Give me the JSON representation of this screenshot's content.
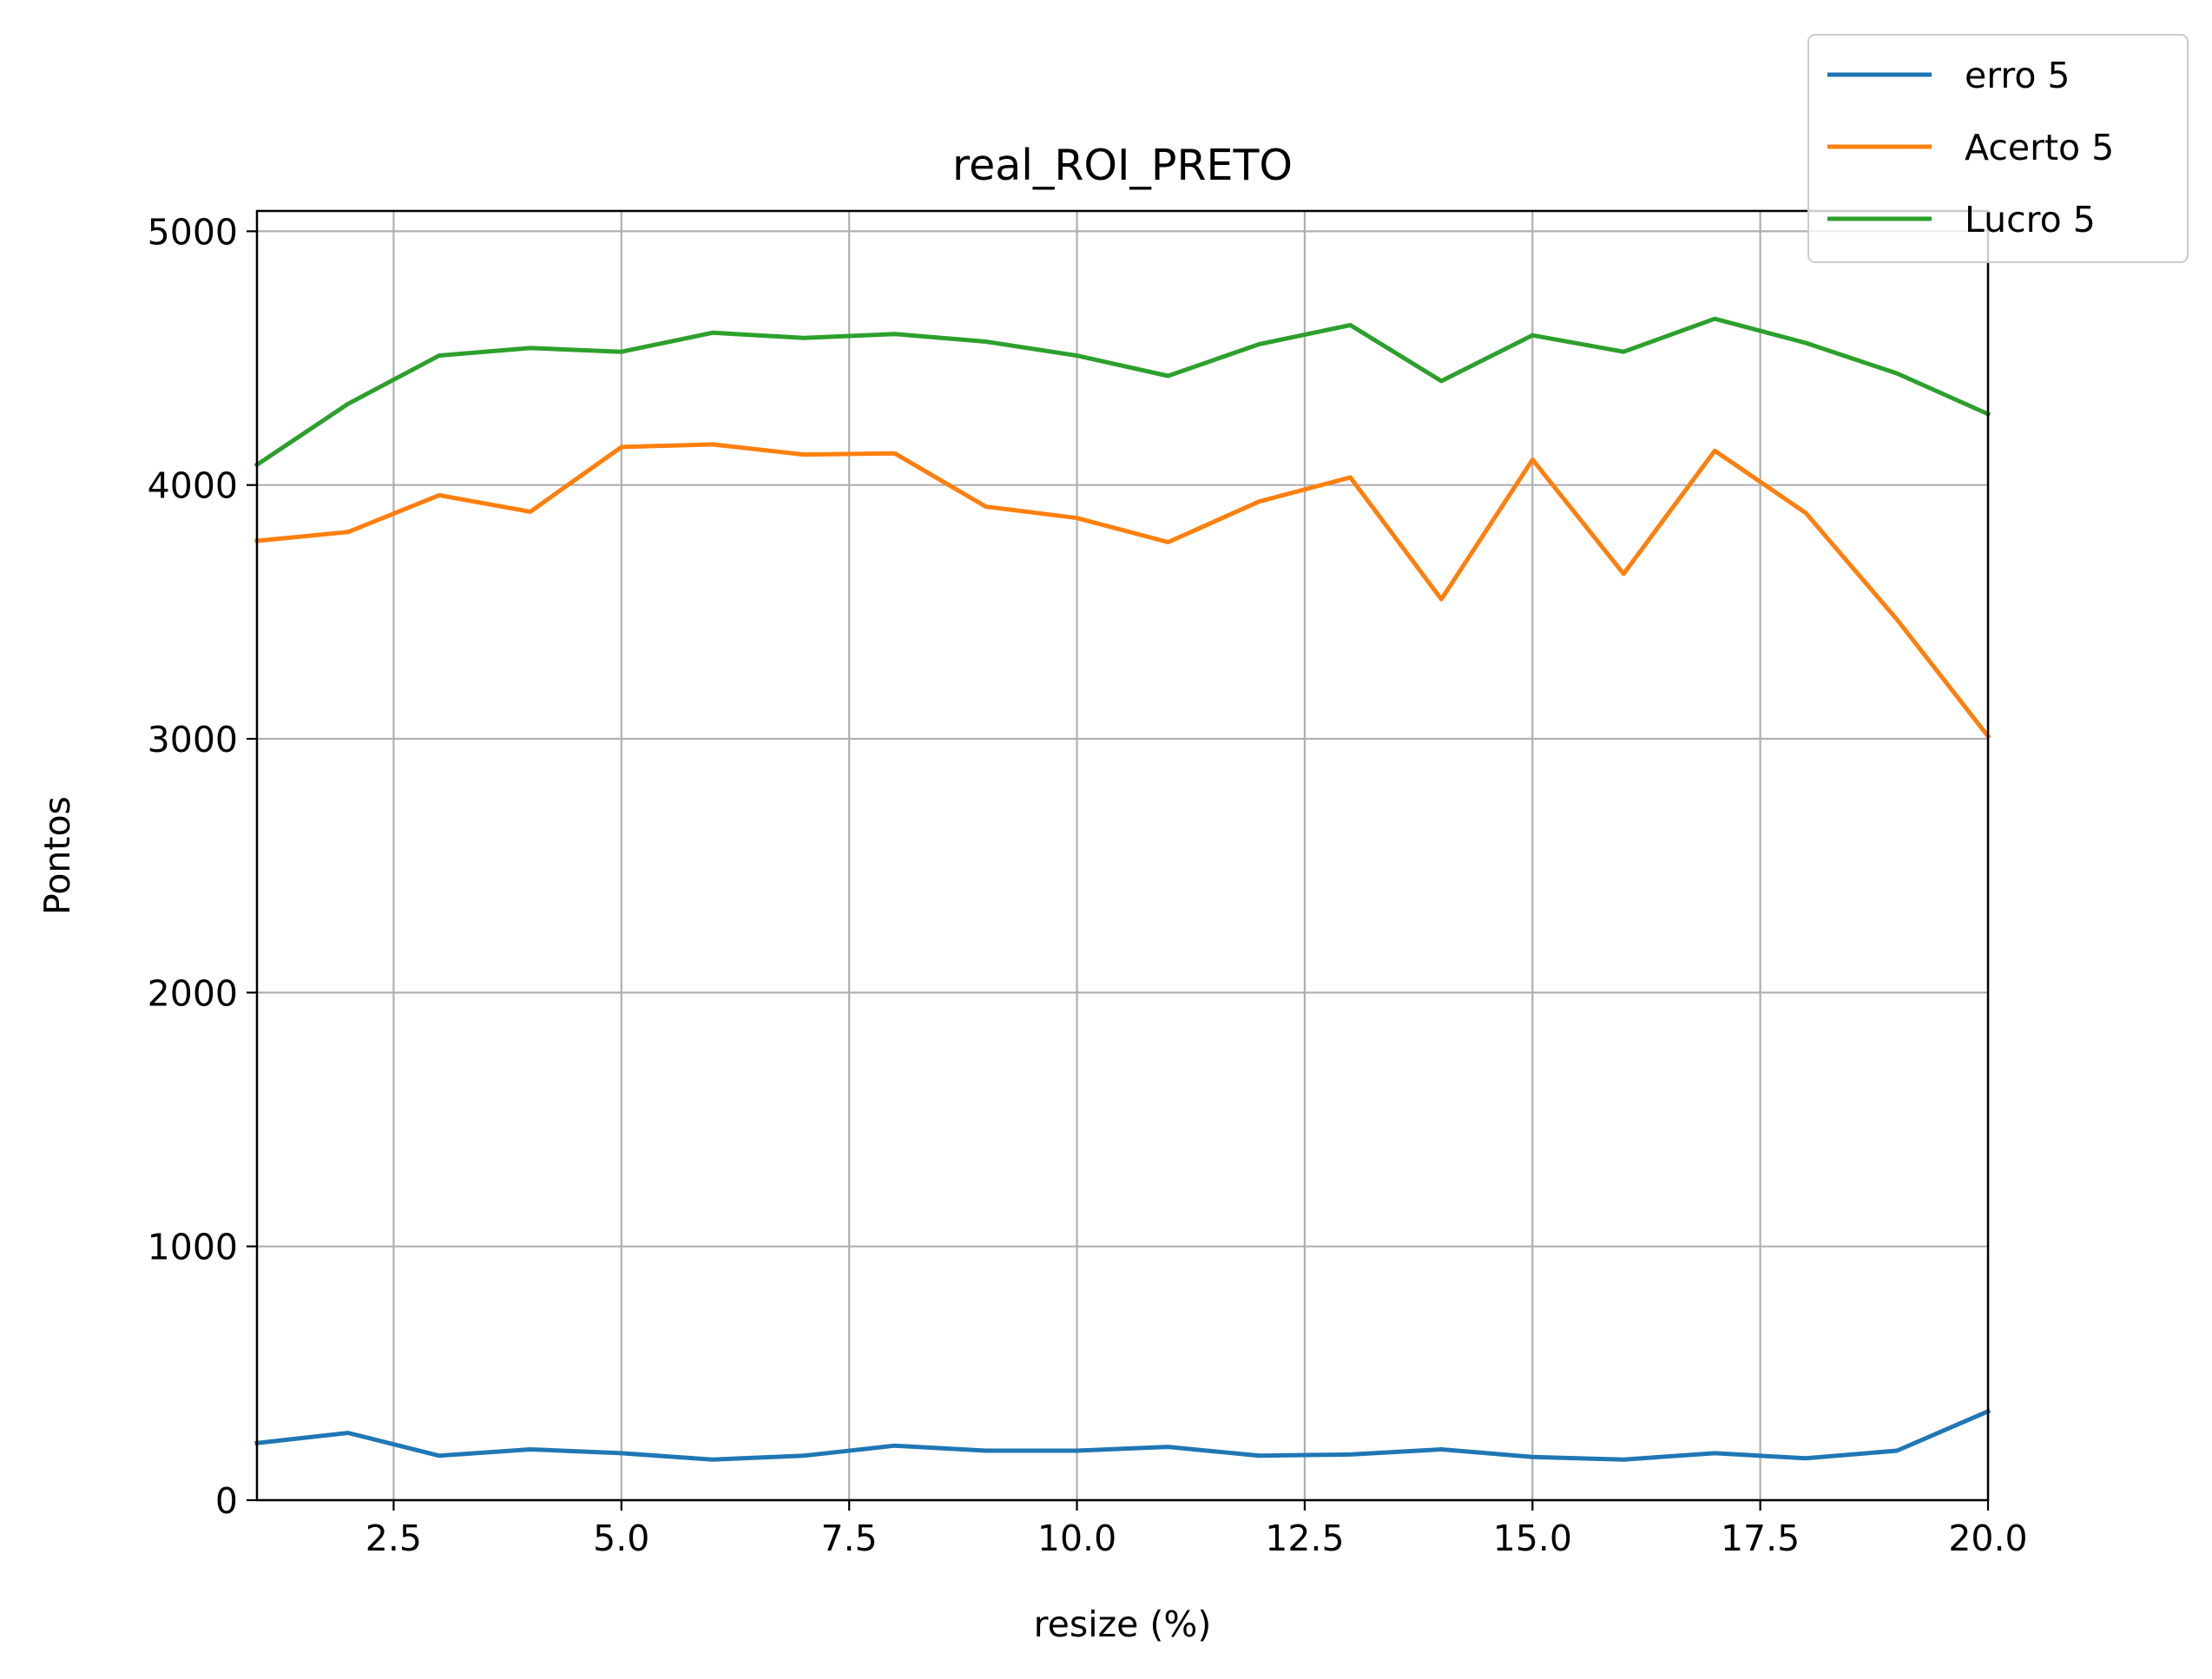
{
  "chart_data": {
    "type": "line",
    "title": "real_ROI_PRETO",
    "xlabel": "resize (%)",
    "ylabel": "Pontos",
    "xlim": [
      1,
      20
    ],
    "ylim": [
      0,
      5080
    ],
    "x": [
      1,
      2,
      3,
      4,
      5,
      6,
      7,
      8,
      9,
      10,
      11,
      12,
      13,
      14,
      15,
      16,
      17,
      18,
      19,
      20
    ],
    "xticks": [
      2.5,
      5.0,
      7.5,
      10.0,
      12.5,
      15.0,
      17.5,
      20.0
    ],
    "xtick_labels": [
      "2.5",
      "5.0",
      "7.5",
      "10.0",
      "12.5",
      "15.0",
      "17.5",
      "20.0"
    ],
    "yticks": [
      0,
      1000,
      2000,
      3000,
      4000,
      5000
    ],
    "ytick_labels": [
      "0",
      "1000",
      "2000",
      "3000",
      "4000",
      "5000"
    ],
    "grid": true,
    "legend_position": "top-right",
    "series": [
      {
        "name": "erro 5",
        "color": "#1f77b4",
        "values": [
          225,
          265,
          175,
          200,
          185,
          160,
          175,
          215,
          195,
          195,
          210,
          175,
          180,
          200,
          170,
          160,
          185,
          165,
          195,
          350
        ]
      },
      {
        "name": "Acerto 5",
        "color": "#ff7f0e",
        "values": [
          3780,
          3815,
          3960,
          3895,
          4150,
          4160,
          4120,
          4125,
          3915,
          3870,
          3775,
          3935,
          4030,
          3550,
          4100,
          3650,
          4135,
          3890,
          3470,
          3010
        ]
      },
      {
        "name": "Lucro 5",
        "color": "#2ca02c",
        "values": [
          4080,
          4320,
          4510,
          4540,
          4525,
          4600,
          4580,
          4595,
          4565,
          4510,
          4430,
          4555,
          4630,
          4410,
          4590,
          4525,
          4655,
          4560,
          4440,
          4280
        ]
      }
    ]
  }
}
